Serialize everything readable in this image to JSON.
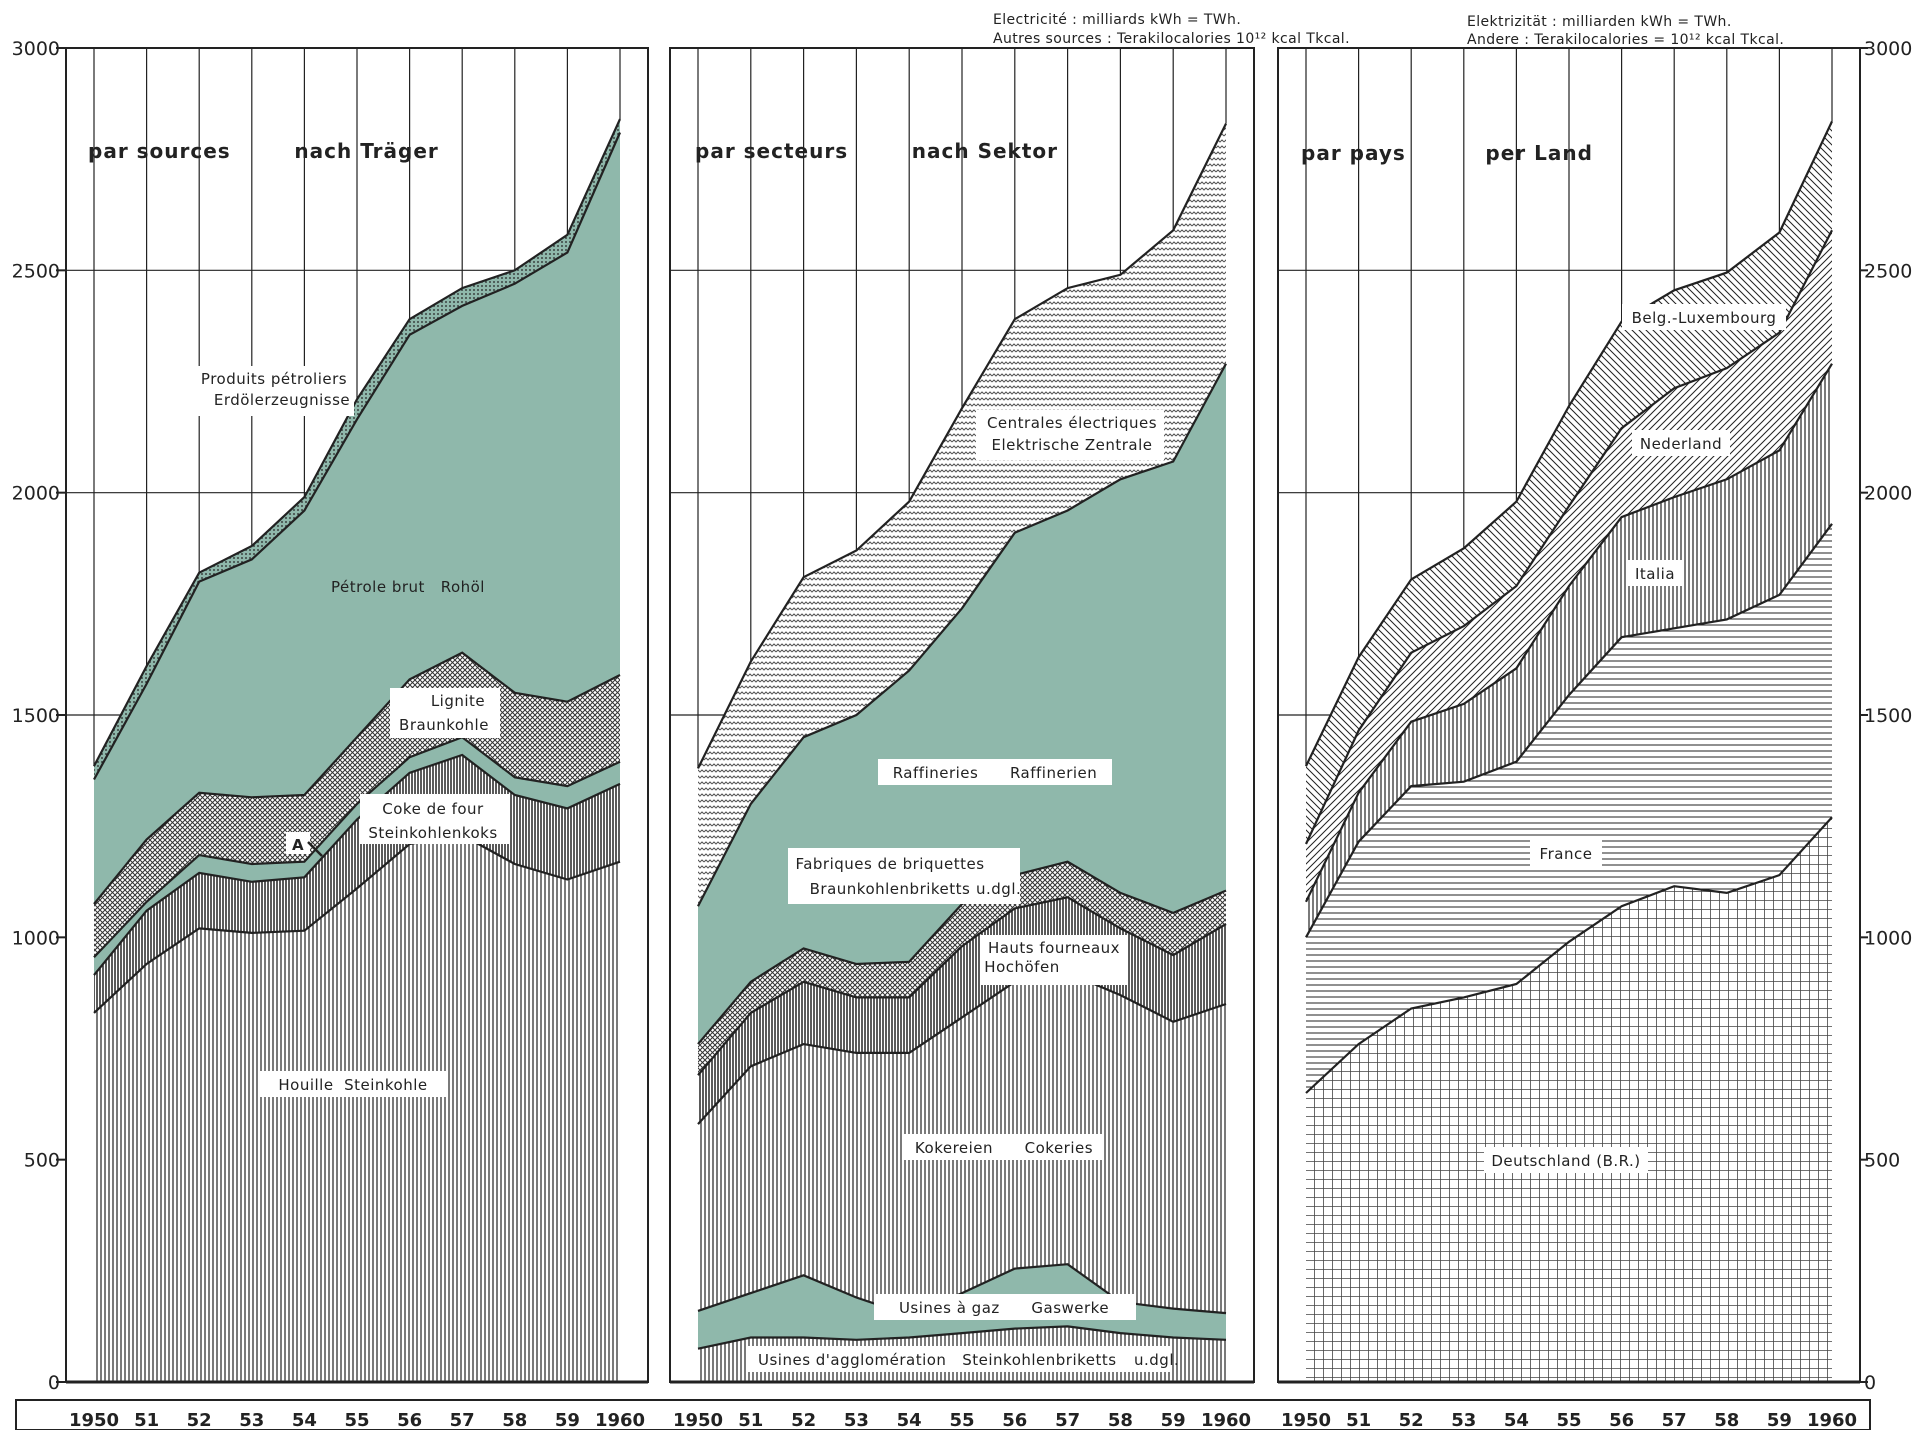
{
  "header": {
    "fr_line1": "Electricité : milliards kWh  = TWh.",
    "fr_line2": "Autres sources : Terakilocalories    10¹² kcal   Tkcal.",
    "de_line1": "Elektrizität : milliarden kWh = TWh.",
    "de_line2": "Andere : Terakilocalories  = 10¹² kcal     Tkcal."
  },
  "colors": {
    "green": "#8fb8ab",
    "green_dark": "#4f7f70",
    "ink": "#222222",
    "paper": "#ffffff"
  },
  "chart_data": [
    {
      "type": "area",
      "title": "par sources        nach Träger",
      "x": [
        "1950",
        "51",
        "52",
        "53",
        "54",
        "55",
        "56",
        "57",
        "58",
        "59",
        "1960"
      ],
      "ylim": [
        0,
        3000
      ],
      "yticks": [
        "0",
        "500",
        "1000",
        "1500",
        "2000",
        "2500",
        "3000"
      ],
      "grid": true,
      "boundaries": [
        [
          0,
          0,
          0,
          0,
          0,
          0,
          0,
          0,
          0,
          0,
          0
        ],
        [
          830,
          940,
          1020,
          1010,
          1015,
          1110,
          1210,
          1230,
          1165,
          1130,
          1170
        ],
        [
          915,
          1060,
          1145,
          1125,
          1135,
          1265,
          1370,
          1410,
          1320,
          1290,
          1345
        ],
        [
          955,
          1080,
          1185,
          1165,
          1170,
          1300,
          1405,
          1450,
          1360,
          1340,
          1395
        ],
        [
          1075,
          1220,
          1325,
          1315,
          1320,
          1450,
          1580,
          1640,
          1550,
          1530,
          1590
        ],
        [
          1355,
          1570,
          1800,
          1850,
          1960,
          2165,
          2355,
          2420,
          2470,
          2540,
          2810
        ],
        [
          1385,
          1610,
          1820,
          1880,
          1990,
          2210,
          2390,
          2460,
          2500,
          2580,
          2840
        ]
      ],
      "series": [
        {
          "name": "Houille  Steinkohle",
          "pattern": "vert"
        },
        {
          "name": "Coke de four / Steinkohlenkoks",
          "pattern": "vert-dense"
        },
        {
          "name": "A",
          "pattern": "green"
        },
        {
          "name": "Lignite / Braunkohle",
          "pattern": "cross"
        },
        {
          "name": "Pétrole brut   Rohöl",
          "pattern": "green"
        },
        {
          "name": "Produits pétroliers / Erdölerzeugnisse",
          "pattern": "dots"
        }
      ],
      "labels": {
        "houille": "Houille  Steinkohle",
        "coke_1": "Coke de four",
        "coke_2": "Steinkohlenkoks",
        "a": "A",
        "lignite_1": "Lignite",
        "lignite_2": "Braunkohle",
        "petrole": "Pétrole brut   Rohöl",
        "produits_1": "Produits pétroliers",
        "produits_2": "Erdölerzeugnisse"
      }
    },
    {
      "type": "area",
      "title": "par secteurs        nach Sektor",
      "x": [
        "1950",
        "51",
        "52",
        "53",
        "54",
        "55",
        "56",
        "57",
        "58",
        "59",
        "1960"
      ],
      "ylim": [
        0,
        3000
      ],
      "grid": true,
      "boundaries": [
        [
          0,
          0,
          0,
          0,
          0,
          0,
          0,
          0,
          0,
          0,
          0
        ],
        [
          75,
          100,
          100,
          95,
          100,
          110,
          120,
          125,
          110,
          100,
          95
        ],
        [
          160,
          200,
          240,
          190,
          150,
          200,
          255,
          265,
          180,
          165,
          155
        ],
        [
          580,
          710,
          760,
          740,
          740,
          820,
          900,
          920,
          870,
          810,
          850
        ],
        [
          690,
          830,
          900,
          865,
          865,
          980,
          1065,
          1090,
          1020,
          960,
          1030
        ],
        [
          760,
          900,
          975,
          940,
          945,
          1075,
          1140,
          1170,
          1100,
          1055,
          1105
        ],
        [
          1070,
          1300,
          1450,
          1500,
          1600,
          1740,
          1910,
          1960,
          2030,
          2070,
          2290
        ],
        [
          1380,
          1620,
          1810,
          1870,
          1980,
          2190,
          2390,
          2460,
          2490,
          2590,
          2830
        ]
      ],
      "series": [
        {
          "name": "Usines d'agglomération  Steinkohlenbriketts u.dgl.",
          "pattern": "vert"
        },
        {
          "name": "Usines à gaz   Gaswerke",
          "pattern": "green"
        },
        {
          "name": "Kokereien   Cokeries",
          "pattern": "vert"
        },
        {
          "name": "Hauts fourneaux / Hochöfen",
          "pattern": "vert-dense"
        },
        {
          "name": "Fabriques de briquettes / Braunkohlenbriketts u.dgl.",
          "pattern": "cross"
        },
        {
          "name": "Raffineries   Raffinerien",
          "pattern": "green"
        },
        {
          "name": "Centrales électriques / Elektrische Zentrale",
          "pattern": "zigzag"
        }
      ],
      "labels": {
        "agglo": "Usines d'agglomération   Steinkohlenbriketts",
        "agglo_small": "u.dgl.",
        "gaz": "Usines à gaz      Gaswerke",
        "kokereien": "Kokereien      Cokeries",
        "hauts_1": "Hauts fourneaux",
        "hauts_2": "Hochöfen",
        "fabriques_1": "Fabriques de briquettes",
        "fabriques_2": "Braunkohlenbriketts",
        "fabriques_small": "u.dgl.",
        "raffineries": "Raffineries      Raffinerien",
        "centrales_1": "Centrales électriques",
        "centrales_2": "Elektrische Zentrale"
      }
    },
    {
      "type": "area",
      "title": "par pays          per Land",
      "x": [
        "1950",
        "51",
        "52",
        "53",
        "54",
        "55",
        "56",
        "57",
        "58",
        "59",
        "1960"
      ],
      "ylim": [
        0,
        3000
      ],
      "yticks": [
        "0",
        "500",
        "1000",
        "1500",
        "2000",
        "2500",
        "3000"
      ],
      "grid": true,
      "boundaries": [
        [
          0,
          0,
          0,
          0,
          0,
          0,
          0,
          0,
          0,
          0,
          0
        ],
        [
          650,
          760,
          840,
          865,
          895,
          990,
          1070,
          1115,
          1100,
          1140,
          1270
        ],
        [
          1000,
          1215,
          1340,
          1350,
          1395,
          1545,
          1675,
          1695,
          1715,
          1770,
          1930
        ],
        [
          1080,
          1325,
          1485,
          1525,
          1605,
          1790,
          1945,
          1990,
          2030,
          2095,
          2290
        ],
        [
          1210,
          1465,
          1640,
          1700,
          1790,
          1970,
          2145,
          2235,
          2280,
          2360,
          2590
        ],
        [
          1385,
          1630,
          1805,
          1875,
          1980,
          2195,
          2385,
          2455,
          2495,
          2585,
          2835
        ]
      ],
      "series": [
        {
          "name": "Deutschland (B.R.)",
          "pattern": "grid"
        },
        {
          "name": "France",
          "pattern": "horiz"
        },
        {
          "name": "Italia",
          "pattern": "vert"
        },
        {
          "name": "Nederland",
          "pattern": "diag-a"
        },
        {
          "name": "Belg.-Luxembourg",
          "pattern": "diag-b"
        }
      ],
      "labels": {
        "deutschland": "Deutschland (B.R.)",
        "france": "France",
        "italia": "Italia",
        "nederland": "Nederland",
        "belg": "Belg.-Luxembourg"
      }
    }
  ]
}
